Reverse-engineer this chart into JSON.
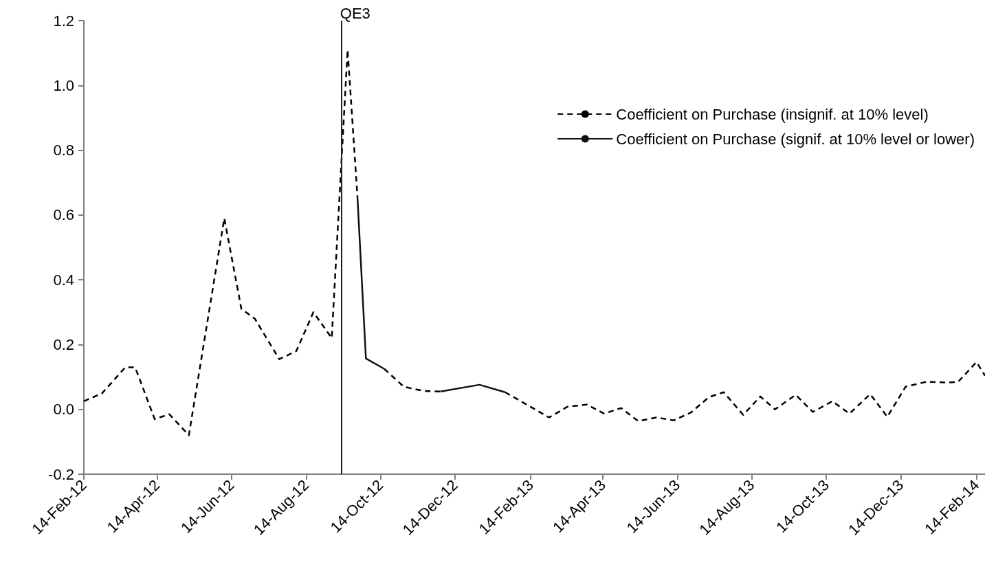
{
  "chart_data": {
    "type": "line",
    "x": [
      "2012-02-14",
      "2012-02-29",
      "2012-03-19",
      "2012-03-27",
      "2012-04-12",
      "2012-04-24",
      "2012-05-10",
      "2012-06-08",
      "2012-06-22",
      "2012-07-03",
      "2012-07-23",
      "2012-08-06",
      "2012-08-20",
      "2012-09-04",
      "2012-09-17",
      "2012-09-25",
      "2012-10-02",
      "2012-10-17",
      "2012-11-02",
      "2012-11-18",
      "2012-12-02",
      "2013-01-03",
      "2013-01-24",
      "2013-03-01",
      "2013-03-16",
      "2013-04-01",
      "2013-04-15",
      "2013-04-29",
      "2013-05-13",
      "2013-05-28",
      "2013-06-11",
      "2013-06-25",
      "2013-07-10",
      "2013-07-22",
      "2013-08-07",
      "2013-08-21",
      "2013-09-02",
      "2013-09-19",
      "2013-10-03",
      "2013-10-19",
      "2013-11-02",
      "2013-11-19",
      "2013-12-03",
      "2013-12-18",
      "2014-01-04",
      "2014-01-21",
      "2014-01-30",
      "2014-02-14",
      "2014-02-21"
    ],
    "series": [
      {
        "name": "Coefficient on Purchase (insignif. at 10% level)",
        "color": "#000000",
        "line_style": "dashed",
        "values": [
          0.025,
          0.05,
          0.13,
          0.13,
          -0.03,
          -0.015,
          -0.08,
          0.59,
          0.31,
          0.28,
          0.155,
          0.18,
          0.3,
          0.22,
          1.11,
          0.66,
          null,
          0.125,
          0.07,
          0.057,
          0.055,
          null,
          0.053,
          -0.025,
          0.008,
          0.015,
          -0.013,
          0.004,
          -0.036,
          -0.025,
          -0.034,
          -0.01,
          0.038,
          0.053,
          -0.017,
          0.04,
          0.0,
          0.045,
          -0.008,
          0.025,
          -0.013,
          0.047,
          -0.023,
          0.07,
          0.085,
          0.083,
          0.085,
          0.146,
          0.104
        ]
      },
      {
        "name": "Coefficient on Purchase (signif. at 10% level or lower)",
        "color": "#111111",
        "line_style": "solid",
        "values": [
          null,
          null,
          null,
          null,
          null,
          null,
          null,
          null,
          null,
          null,
          null,
          null,
          null,
          null,
          null,
          0.66,
          0.157,
          0.125,
          null,
          null,
          0.055,
          0.076,
          0.053,
          null,
          null,
          null,
          null,
          null,
          null,
          null,
          null,
          null,
          null,
          null,
          null,
          null,
          null,
          null,
          null,
          null,
          null,
          null,
          null,
          null,
          null,
          null,
          null,
          null,
          null
        ]
      }
    ],
    "xlim": [
      "2012-02-14",
      "2014-02-21"
    ],
    "xticks": [
      {
        "value": "2012-02-14",
        "label": "14-Feb-12"
      },
      {
        "value": "2012-04-14",
        "label": "14-Apr-12"
      },
      {
        "value": "2012-06-14",
        "label": "14-Jun-12"
      },
      {
        "value": "2012-08-14",
        "label": "14-Aug-12"
      },
      {
        "value": "2012-10-14",
        "label": "14-Oct-12"
      },
      {
        "value": "2012-12-14",
        "label": "14-Dec-12"
      },
      {
        "value": "2013-02-14",
        "label": "14-Feb-13"
      },
      {
        "value": "2013-04-14",
        "label": "14-Apr-13"
      },
      {
        "value": "2013-06-14",
        "label": "14-Jun-13"
      },
      {
        "value": "2013-08-14",
        "label": "14-Aug-13"
      },
      {
        "value": "2013-10-14",
        "label": "14-Oct-13"
      },
      {
        "value": "2013-12-14",
        "label": "14-Dec-13"
      },
      {
        "value": "2014-02-14",
        "label": "14-Feb-14"
      }
    ],
    "ylim": [
      -0.2,
      1.2
    ],
    "yticks": [
      {
        "value": -0.2,
        "label": "-0.2"
      },
      {
        "value": 0,
        "label": "0.0"
      },
      {
        "value": 0.2,
        "label": "0.2"
      },
      {
        "value": 0.4,
        "label": "0.4"
      },
      {
        "value": 0.6,
        "label": "0.6"
      },
      {
        "value": 0.8,
        "label": "0.8"
      },
      {
        "value": 1,
        "label": "1.0"
      },
      {
        "value": 1.2,
        "label": "1.2"
      }
    ],
    "ref_lines": [
      {
        "axis": "x",
        "value": "2012-09-12",
        "label": "QE3",
        "color": "#222222"
      }
    ],
    "legend": "top right",
    "grid": false,
    "marker": "none"
  }
}
